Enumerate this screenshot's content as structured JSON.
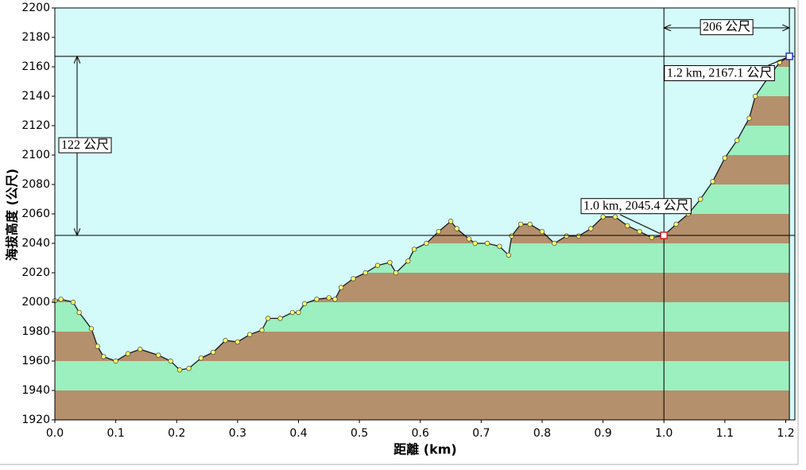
{
  "chart_data": {
    "type": "elevation-profile",
    "xlabel": "距離   (km)",
    "ylabel": "海拔高度 (公尺)",
    "xlim": [
      0,
      1.215
    ],
    "ylim": [
      1920,
      2200
    ],
    "xticks": [
      {
        "value": 0,
        "label": "0.0"
      },
      0.1,
      0.2,
      0.3,
      0.4,
      0.5,
      0.6,
      0.7,
      0.8,
      0.9,
      {
        "value": 1,
        "label": "1.0"
      },
      1.1,
      1.2
    ],
    "yticks": [
      1920,
      1940,
      1960,
      1980,
      2000,
      2020,
      2040,
      2060,
      2080,
      2100,
      2120,
      2140,
      2160,
      2180,
      2200
    ],
    "x": [
      0,
      0.01,
      0.03,
      0.04,
      0.06,
      0.07,
      0.08,
      0.1,
      0.12,
      0.14,
      0.17,
      0.19,
      0.205,
      0.22,
      0.24,
      0.26,
      0.28,
      0.3,
      0.32,
      0.34,
      0.35,
      0.37,
      0.39,
      0.4,
      0.41,
      0.43,
      0.45,
      0.46,
      0.47,
      0.49,
      0.51,
      0.53,
      0.55,
      0.56,
      0.58,
      0.59,
      0.61,
      0.63,
      0.65,
      0.66,
      0.68,
      0.69,
      0.71,
      0.73,
      0.745,
      0.75,
      0.765,
      0.78,
      0.8,
      0.82,
      0.84,
      0.86,
      0.88,
      0.9,
      0.92,
      0.94,
      0.96,
      0.98,
      1.0,
      1.02,
      1.04,
      1.06,
      1.08,
      1.1,
      1.12,
      1.14,
      1.15,
      1.17,
      1.19,
      1.206
    ],
    "series": [
      {
        "color": "#1a1a1a",
        "point_color": "#ffff66",
        "values": [
          2001,
          2002,
          2000,
          1993,
          1982,
          1970,
          1963,
          1960,
          1965,
          1968,
          1964,
          1960,
          1954,
          1955,
          1962,
          1966,
          1974,
          1973,
          1978,
          1981,
          1989,
          1989,
          1993,
          1993,
          1999,
          2002,
          2003,
          2002,
          2010,
          2016,
          2020,
          2025,
          2027,
          2020,
          2028,
          2036,
          2040,
          2048,
          2055,
          2050,
          2043,
          2040,
          2040,
          2038,
          2032,
          2045,
          2053,
          2053,
          2048,
          2040,
          2045,
          2045,
          2050,
          2058,
          2058,
          2052,
          2048,
          2044,
          2045.4,
          2053,
          2060,
          2070,
          2082,
          2098,
          2110,
          2125,
          2140,
          2152,
          2163,
          2167.1
        ]
      }
    ],
    "colors": {
      "sky": "#d4fafa",
      "bands": [
        "#b5906c",
        "#9cefbe"
      ],
      "cursor": "#000000"
    },
    "markers": [
      {
        "x": 1.0,
        "y": 2045.4,
        "label": "1.0 km, 2045.4 公尺",
        "color": "#dd2222"
      },
      {
        "x": 1.206,
        "y": 2167.1,
        "label": "1.2 km, 2167.1 公尺",
        "color": "#2233cc"
      }
    ],
    "distance_label": "206 公尺",
    "height_label": "122 公尺"
  }
}
